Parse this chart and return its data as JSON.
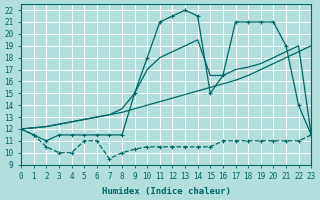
{
  "xlabel": "Humidex (Indice chaleur)",
  "bg_color": "#b2dfdb",
  "line_color": "#006666",
  "grid_color": "#ffffff",
  "xlim": [
    0,
    23
  ],
  "ylim": [
    9,
    22.5
  ],
  "xticks": [
    0,
    1,
    2,
    3,
    4,
    5,
    6,
    7,
    8,
    9,
    10,
    11,
    12,
    13,
    14,
    15,
    16,
    17,
    18,
    19,
    20,
    21,
    22,
    23
  ],
  "yticks": [
    9,
    10,
    11,
    12,
    13,
    14,
    15,
    16,
    17,
    18,
    19,
    20,
    21,
    22
  ],
  "line1_x": [
    0,
    1,
    2,
    3,
    4,
    5,
    6,
    7,
    8,
    9,
    10,
    11,
    12,
    13,
    14,
    15,
    16,
    17,
    18,
    19,
    20,
    21,
    22,
    23
  ],
  "line1_y": [
    12,
    11.5,
    10.5,
    10,
    10,
    11,
    11,
    9.5,
    10,
    10.3,
    10.5,
    10.5,
    10.5,
    10.5,
    10.5,
    10.5,
    11.0,
    11.0,
    11.0,
    11.0,
    11.0,
    11.0,
    11.0,
    11.5
  ],
  "line2_x": [
    0,
    1,
    2,
    3,
    4,
    5,
    6,
    7,
    8,
    9,
    10,
    11,
    12,
    13,
    14,
    15,
    16,
    17,
    18,
    19,
    20,
    21,
    22,
    23
  ],
  "line2_y": [
    12,
    12.1,
    12.2,
    12.4,
    12.6,
    12.8,
    13.0,
    13.2,
    13.4,
    13.7,
    14.0,
    14.3,
    14.6,
    14.9,
    15.2,
    15.5,
    15.8,
    16.1,
    16.5,
    17.0,
    17.5,
    18.0,
    18.5,
    19.0
  ],
  "line3_x": [
    0,
    1,
    2,
    3,
    4,
    5,
    6,
    7,
    8,
    9,
    10,
    11,
    12,
    13,
    14,
    15,
    16,
    17,
    18,
    19,
    20,
    21,
    22,
    23
  ],
  "line3_y": [
    12.0,
    12.1,
    12.2,
    12.4,
    12.6,
    12.8,
    13.0,
    13.2,
    13.7,
    15.0,
    17.0,
    18.0,
    18.5,
    19.0,
    19.5,
    16.5,
    16.5,
    17.0,
    17.2,
    17.5,
    18.0,
    18.5,
    19.0,
    11.5
  ],
  "line4_x": [
    0,
    1,
    2,
    3,
    4,
    5,
    6,
    7,
    8,
    9,
    10,
    11,
    12,
    13,
    14,
    15,
    16,
    17,
    18,
    19,
    20,
    21,
    22,
    23
  ],
  "line4_y": [
    12.0,
    11.5,
    11.0,
    11.5,
    11.5,
    11.5,
    11.5,
    11.5,
    11.5,
    15.0,
    18.0,
    21.0,
    21.5,
    22.0,
    21.5,
    15.0,
    16.5,
    21.0,
    21.0,
    21.0,
    21.0,
    19.0,
    14.0,
    11.5
  ]
}
